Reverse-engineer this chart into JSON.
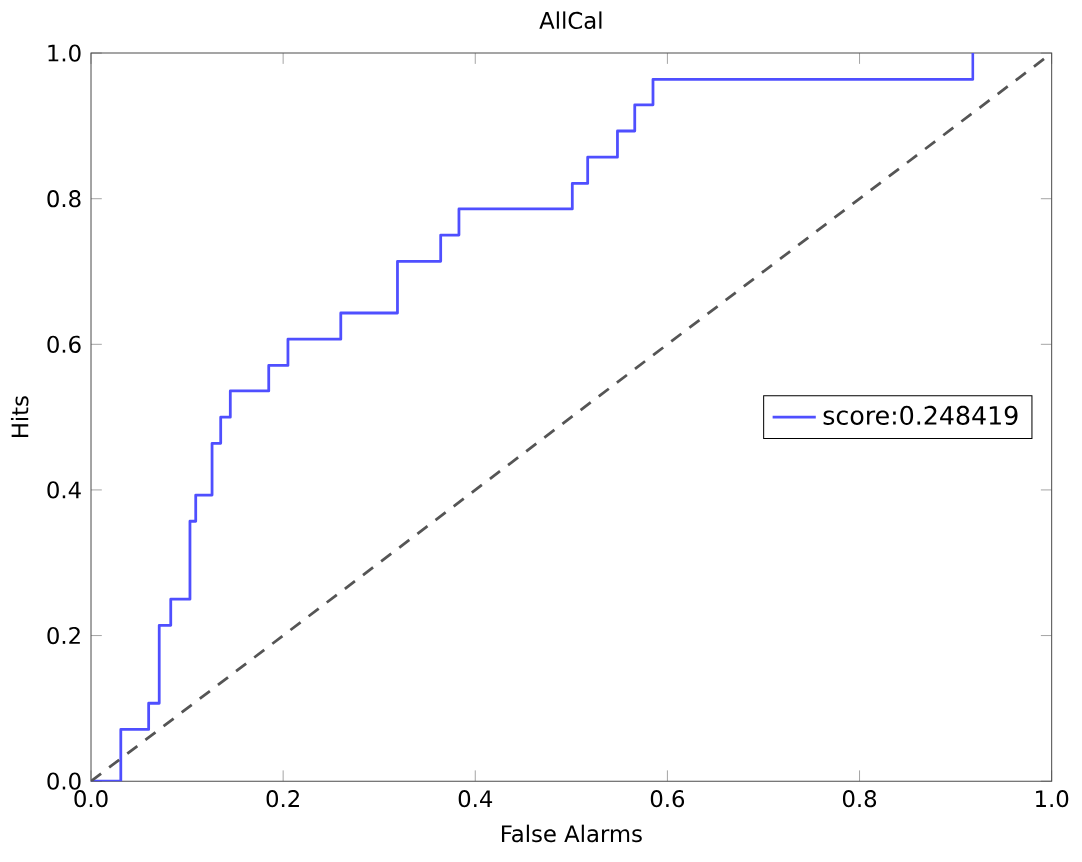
{
  "chart_data": {
    "type": "line",
    "title": "AllCal",
    "xlabel": "False Alarms",
    "ylabel": "Hits",
    "xlim": [
      0,
      1
    ],
    "ylim": [
      0,
      1
    ],
    "xticks": [
      {
        "value": 0,
        "label": "0.0"
      },
      {
        "value": 0.2,
        "label": "0.2"
      },
      {
        "value": 0.4,
        "label": "0.4"
      },
      {
        "value": 0.6,
        "label": "0.6"
      },
      {
        "value": 0.8,
        "label": "0.8"
      },
      {
        "value": 1,
        "label": "1.0"
      }
    ],
    "yticks": [
      {
        "value": 0,
        "label": "0.0"
      },
      {
        "value": 0.2,
        "label": "0.2"
      },
      {
        "value": 0.4,
        "label": "0.4"
      },
      {
        "value": 0.6,
        "label": "0.6"
      },
      {
        "value": 0.8,
        "label": "0.8"
      },
      {
        "value": 1,
        "label": "1.0"
      }
    ],
    "legend": "right",
    "grid": false,
    "series": [
      {
        "name": "score:0.248419",
        "color": "#4f4fff",
        "line_style": "solid",
        "x": [
          0,
          0.031,
          0.031,
          0.06,
          0.06,
          0.071,
          0.071,
          0.083,
          0.083,
          0.103,
          0.103,
          0.109,
          0.109,
          0.126,
          0.126,
          0.135,
          0.135,
          0.145,
          0.145,
          0.185,
          0.185,
          0.205,
          0.205,
          0.26,
          0.26,
          0.319,
          0.319,
          0.364,
          0.364,
          0.383,
          0.383,
          0.501,
          0.501,
          0.517,
          0.517,
          0.548,
          0.548,
          0.566,
          0.566,
          0.585,
          0.585,
          0.918,
          0.918
        ],
        "values": [
          0,
          0,
          0.071,
          0.071,
          0.107,
          0.107,
          0.214,
          0.214,
          0.25,
          0.25,
          0.357,
          0.357,
          0.393,
          0.393,
          0.464,
          0.464,
          0.5,
          0.5,
          0.536,
          0.536,
          0.571,
          0.571,
          0.607,
          0.607,
          0.643,
          0.643,
          0.714,
          0.714,
          0.75,
          0.75,
          0.786,
          0.786,
          0.821,
          0.821,
          0.857,
          0.857,
          0.893,
          0.893,
          0.929,
          0.929,
          0.964,
          0.964,
          1.0
        ]
      },
      {
        "color": "#555555",
        "line_style": "dashed",
        "x": [
          0,
          1
        ],
        "values": [
          0,
          1
        ]
      }
    ]
  }
}
